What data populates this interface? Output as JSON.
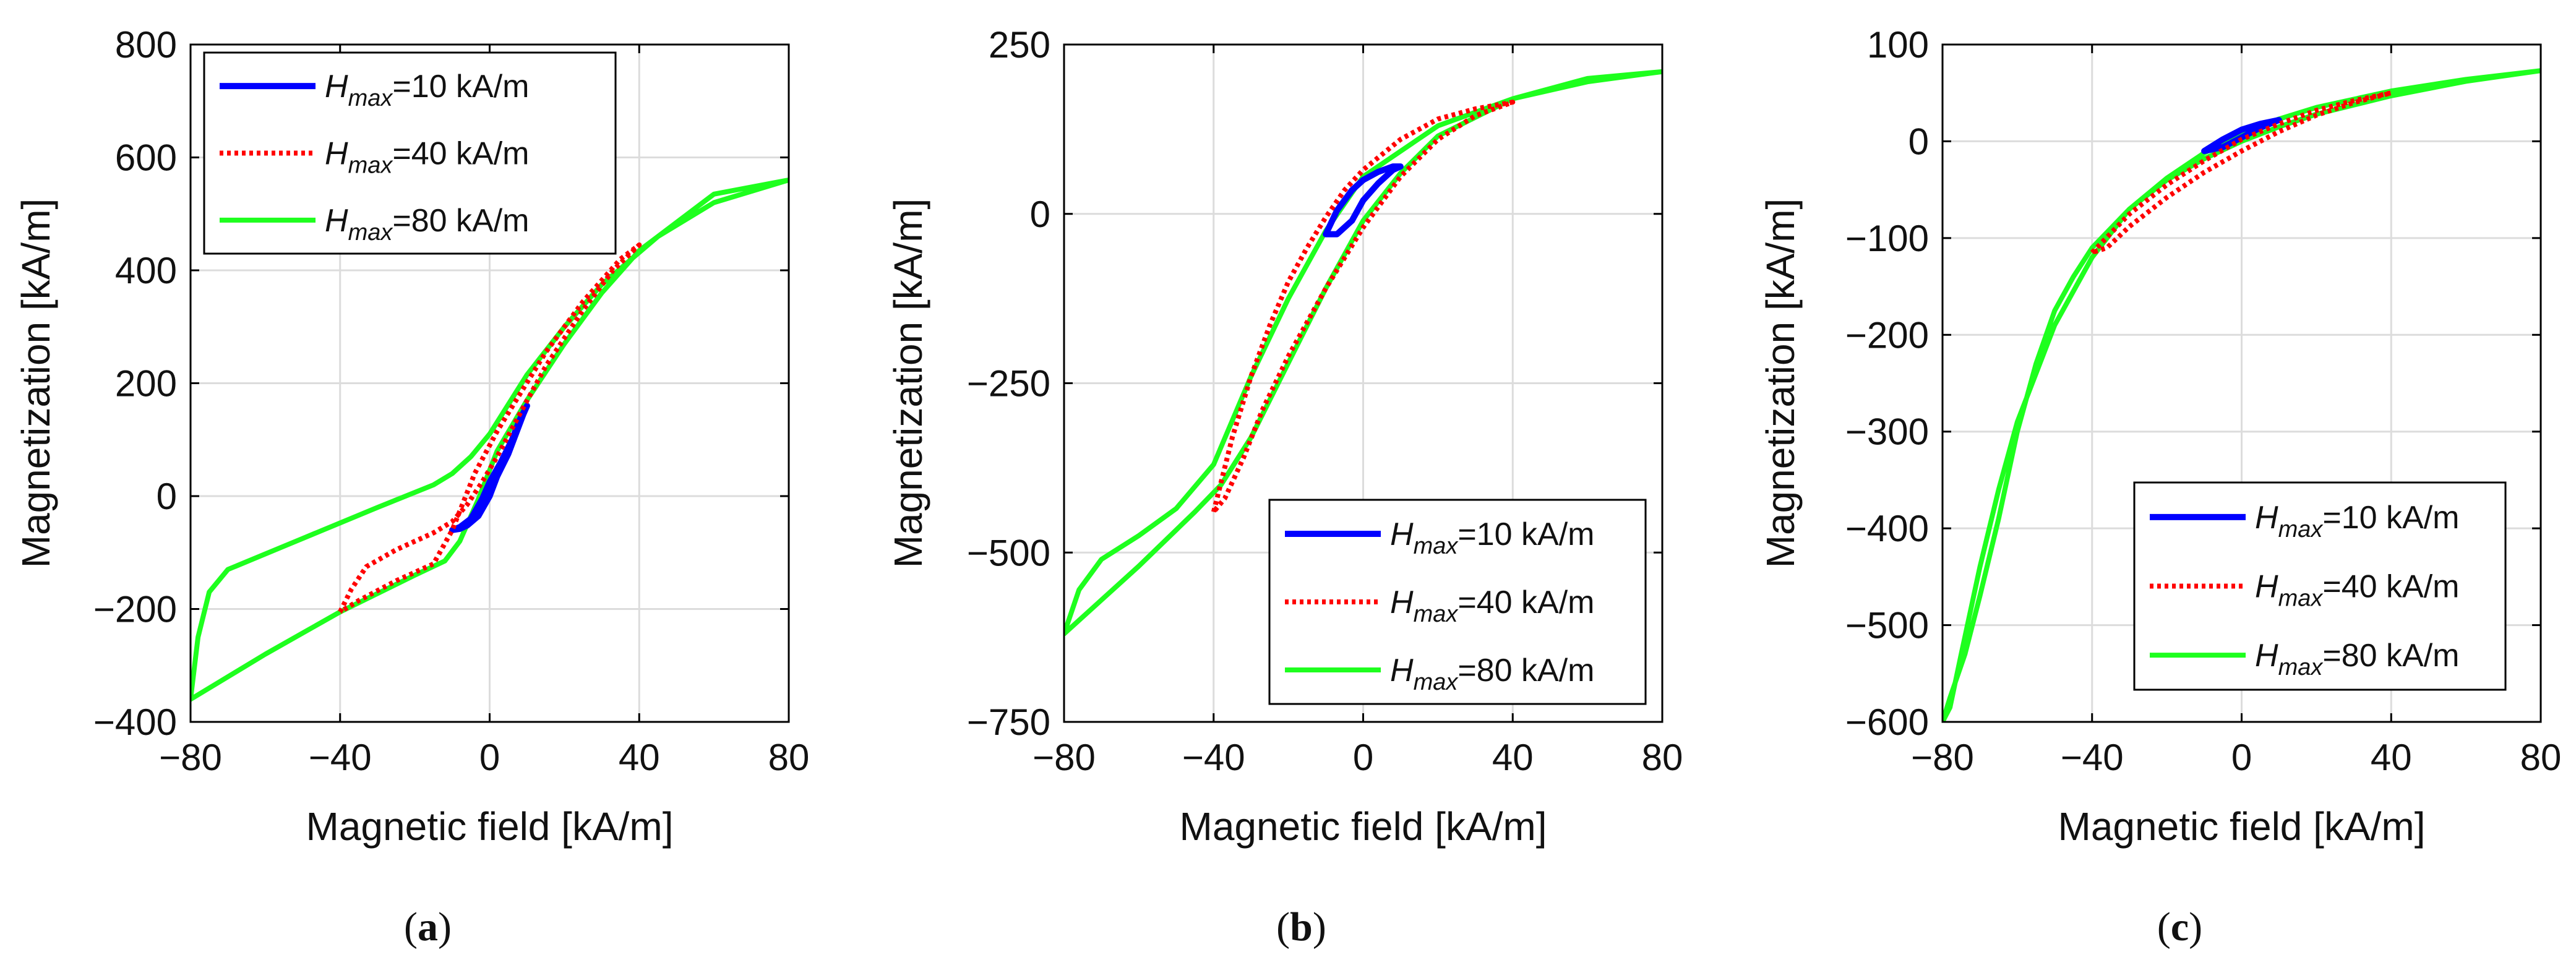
{
  "chart_data": [
    {
      "type": "line",
      "panel_label": "(a)",
      "xlabel": "Magnetic field [kA/m]",
      "ylabel": "Magnetization [kA/m]",
      "xlim": [
        -80,
        80
      ],
      "ylim": [
        -400,
        800
      ],
      "xticks": [
        -80,
        -40,
        0,
        40,
        80
      ],
      "yticks": [
        -400,
        -200,
        0,
        200,
        400,
        600,
        800
      ],
      "grid": true,
      "legend_position": "top-left",
      "legend": [
        {
          "prefix": "H",
          "sub": "max",
          "suffix": "=10 kA/m"
        },
        {
          "prefix": "H",
          "sub": "max",
          "suffix": "=40 kA/m"
        },
        {
          "prefix": "H",
          "sub": "max",
          "suffix": "=80 kA/m"
        }
      ],
      "series": [
        {
          "name": "Hmax=10 kA/m",
          "color": "#0000ff",
          "style": "solid",
          "width": 10,
          "x": [
            -10,
            -8,
            -5,
            -2,
            0,
            3,
            6,
            8,
            10,
            9,
            7,
            5,
            2,
            0,
            -3,
            -6,
            -8,
            -10
          ],
          "y": [
            -60,
            -55,
            -40,
            -5,
            25,
            60,
            100,
            135,
            160,
            145,
            110,
            75,
            35,
            0,
            -35,
            -52,
            -58,
            -60
          ]
        },
        {
          "name": "Hmax=40 kA/m",
          "color": "#ff0000",
          "style": "dotted",
          "width": 8,
          "x": [
            -40,
            -37,
            -33,
            -25,
            -15,
            -10,
            -6,
            -2,
            2,
            8,
            15,
            25,
            33,
            40,
            35,
            25,
            15,
            8,
            2,
            -4,
            -10,
            -15,
            -25,
            -35,
            -40
          ],
          "y": [
            -205,
            -165,
            -125,
            -95,
            -65,
            -45,
            -15,
            25,
            70,
            145,
            230,
            330,
            400,
            445,
            420,
            345,
            255,
            180,
            115,
            40,
            -60,
            -120,
            -150,
            -185,
            -205
          ]
        },
        {
          "name": "Hmax=80 kA/m",
          "color": "#1eff1e",
          "style": "solid",
          "width": 8,
          "x": [
            -80,
            -78,
            -75,
            -70,
            -50,
            -30,
            -15,
            -10,
            -5,
            0,
            10,
            20,
            30,
            45,
            60,
            80,
            60,
            40,
            30,
            20,
            10,
            2,
            -3,
            -8,
            -12,
            -20,
            -40,
            -60,
            -80
          ],
          "y": [
            -360,
            -250,
            -170,
            -130,
            -75,
            -20,
            20,
            40,
            70,
            110,
            215,
            300,
            375,
            460,
            520,
            560,
            535,
            435,
            360,
            270,
            170,
            80,
            -5,
            -80,
            -115,
            -140,
            -205,
            -280,
            -360
          ]
        }
      ]
    },
    {
      "type": "line",
      "panel_label": "(b)",
      "xlabel": "Magnetic field [kA/m]",
      "ylabel": "Magnetization [kA/m]",
      "xlim": [
        -80,
        80
      ],
      "ylim": [
        -750,
        250
      ],
      "xticks": [
        -80,
        -40,
        0,
        40,
        80
      ],
      "yticks": [
        -750,
        -500,
        -250,
        0,
        250
      ],
      "grid": true,
      "legend_position": "bottom-right",
      "legend": [
        {
          "prefix": "H",
          "sub": "max",
          "suffix": "=10 kA/m"
        },
        {
          "prefix": "H",
          "sub": "max",
          "suffix": "=40 kA/m"
        },
        {
          "prefix": "H",
          "sub": "max",
          "suffix": "=80 kA/m"
        }
      ],
      "series": [
        {
          "name": "Hmax=10 kA/m",
          "color": "#0000ff",
          "style": "solid",
          "width": 10,
          "x": [
            -10,
            -7,
            -3,
            0,
            4,
            8,
            10,
            8,
            4,
            0,
            -3,
            -7,
            -10
          ],
          "y": [
            -30,
            5,
            35,
            50,
            62,
            70,
            70,
            65,
            45,
            20,
            -10,
            -30,
            -30
          ]
        },
        {
          "name": "Hmax=40 kA/m",
          "color": "#ff0000",
          "style": "dotted",
          "width": 8,
          "x": [
            -40,
            -35,
            -30,
            -25,
            -20,
            -15,
            -10,
            -5,
            0,
            10,
            20,
            30,
            40,
            30,
            20,
            10,
            0,
            -10,
            -20,
            -27,
            -32,
            -37,
            -40
          ],
          "y": [
            -440,
            -330,
            -240,
            -165,
            -100,
            -50,
            -5,
            35,
            65,
            110,
            140,
            155,
            165,
            145,
            110,
            55,
            -20,
            -110,
            -210,
            -290,
            -360,
            -420,
            -440
          ]
        },
        {
          "name": "Hmax=80 kA/m",
          "color": "#1eff1e",
          "style": "solid",
          "width": 8,
          "x": [
            -80,
            -76,
            -70,
            -60,
            -50,
            -40,
            -30,
            -20,
            -10,
            0,
            20,
            40,
            60,
            80,
            60,
            40,
            20,
            10,
            0,
            -10,
            -20,
            -30,
            -38,
            -45,
            -60,
            -80
          ],
          "y": [
            -620,
            -555,
            -510,
            -475,
            -435,
            -370,
            -240,
            -125,
            -25,
            55,
            130,
            170,
            195,
            210,
            200,
            170,
            115,
            60,
            -10,
            -110,
            -220,
            -330,
            -400,
            -440,
            -520,
            -620
          ]
        }
      ]
    },
    {
      "type": "line",
      "panel_label": "(c)",
      "xlabel": "Magnetic field [kA/m]",
      "ylabel": "Magnetization [kA/m]",
      "xlim": [
        -80,
        80
      ],
      "ylim": [
        -600,
        100
      ],
      "xticks": [
        -80,
        -40,
        0,
        40,
        80
      ],
      "yticks": [
        -600,
        -500,
        -400,
        -300,
        -200,
        -100,
        0,
        100
      ],
      "grid": true,
      "legend_position": "bottom-right",
      "legend": [
        {
          "prefix": "H",
          "sub": "max",
          "suffix": "=10 kA/m"
        },
        {
          "prefix": "H",
          "sub": "max",
          "suffix": "=40 kA/m"
        },
        {
          "prefix": "H",
          "sub": "max",
          "suffix": "=80 kA/m"
        }
      ],
      "series": [
        {
          "name": "Hmax=10 kA/m",
          "color": "#0000ff",
          "style": "solid",
          "width": 10,
          "x": [
            -10,
            -5,
            0,
            5,
            10,
            5,
            0,
            -5,
            -10
          ],
          "y": [
            -10,
            2,
            12,
            18,
            22,
            14,
            4,
            -6,
            -10
          ]
        },
        {
          "name": "Hmax=40 kA/m",
          "color": "#ff0000",
          "style": "dotted",
          "width": 8,
          "x": [
            -40,
            -30,
            -20,
            -10,
            0,
            10,
            20,
            30,
            40,
            30,
            20,
            10,
            0,
            -10,
            -20,
            -30,
            -36,
            -40
          ],
          "y": [
            -115,
            -75,
            -45,
            -20,
            2,
            18,
            32,
            42,
            50,
            40,
            27,
            10,
            -10,
            -32,
            -58,
            -88,
            -110,
            -115
          ]
        },
        {
          "name": "Hmax=80 kA/m",
          "color": "#1eff1e",
          "style": "solid",
          "width": 8,
          "x": [
            -80,
            -78,
            -74,
            -70,
            -65,
            -60,
            -55,
            -50,
            -45,
            -40,
            -30,
            -20,
            -10,
            0,
            10,
            20,
            40,
            60,
            80,
            60,
            40,
            20,
            10,
            0,
            -10,
            -20,
            -30,
            -40,
            -50,
            -60,
            -65,
            -70,
            -75,
            -78,
            -80
          ],
          "y": [
            -600,
            -575,
            -530,
            -470,
            -390,
            -300,
            -230,
            -175,
            -140,
            -110,
            -70,
            -40,
            -18,
            0,
            15,
            28,
            47,
            62,
            73,
            64,
            52,
            35,
            23,
            8,
            -12,
            -38,
            -70,
            -120,
            -190,
            -290,
            -360,
            -440,
            -530,
            -585,
            -600
          ]
        }
      ]
    }
  ]
}
